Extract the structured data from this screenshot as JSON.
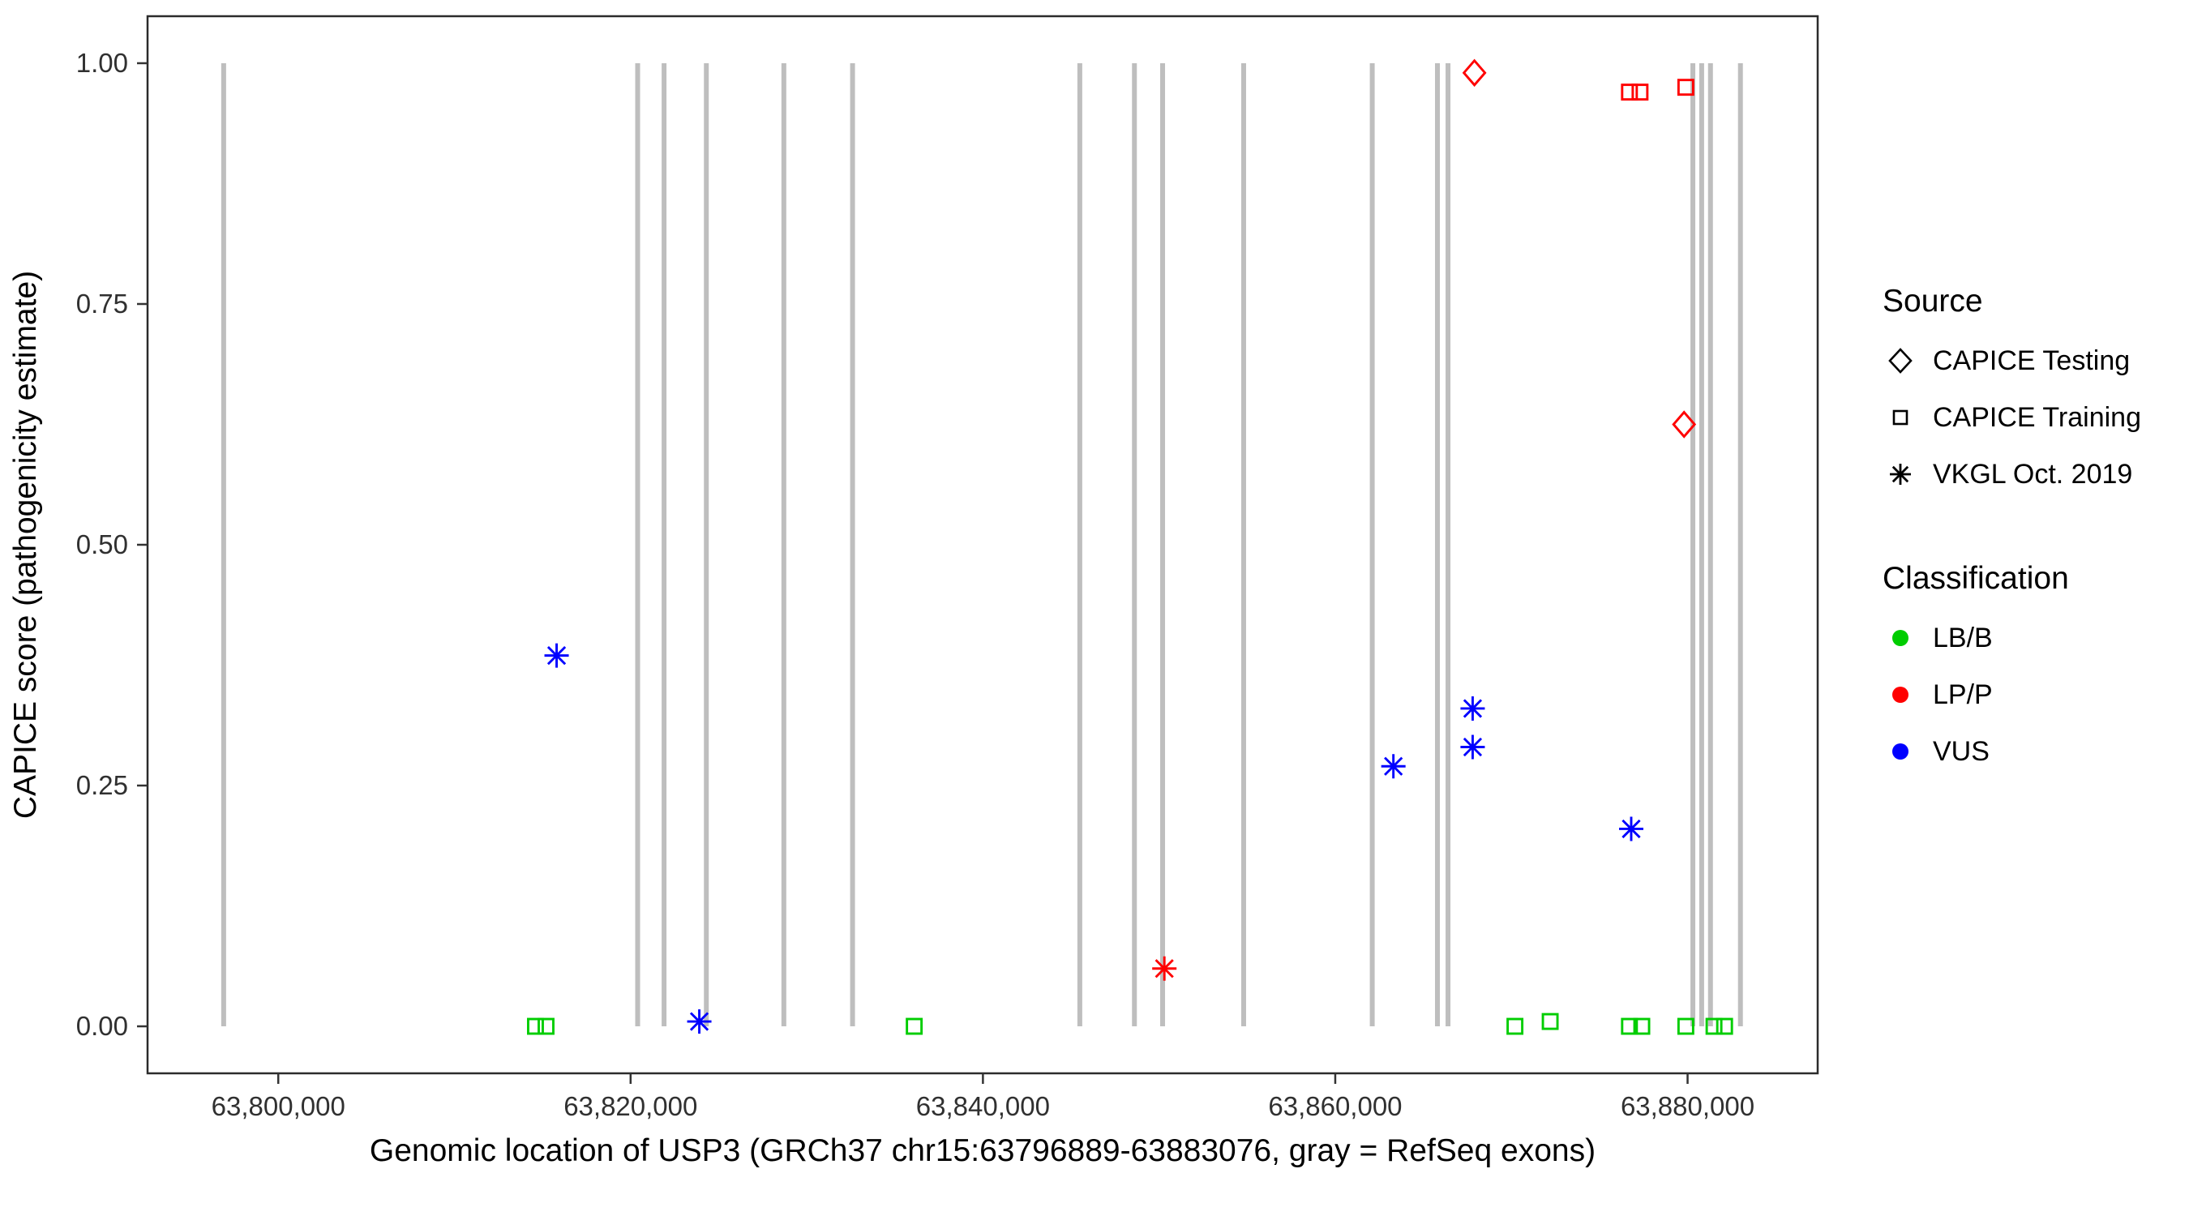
{
  "chart_data": {
    "type": "scatter",
    "title": "",
    "xlabel": "Genomic location of USP3 (GRCh37 chr15:63796889-63883076, gray = RefSeq exons)",
    "ylabel": "CAPICE score (pathogenicity estimate)",
    "x_domain": [
      63792580,
      63887385
    ],
    "y_domain": [
      -0.0488,
      1.0488
    ],
    "grid": "off",
    "x_ticks": [
      {
        "value": 63800000,
        "label": "63,800,000"
      },
      {
        "value": 63820000,
        "label": "63,820,000"
      },
      {
        "value": 63840000,
        "label": "63,840,000"
      },
      {
        "value": 63860000,
        "label": "63,860,000"
      },
      {
        "value": 63880000,
        "label": "63,880,000"
      }
    ],
    "y_ticks": [
      {
        "value": 0,
        "label": "0.00"
      },
      {
        "value": 0.25,
        "label": "0.25"
      },
      {
        "value": 0.5,
        "label": "0.50"
      },
      {
        "value": 0.75,
        "label": "0.75"
      },
      {
        "value": 1,
        "label": "1.00"
      }
    ],
    "exons": {
      "color": "#BEBEBE",
      "y_from": 0,
      "y_to": 1,
      "positions": [
        63796900,
        63820400,
        63821900,
        63824300,
        63828700,
        63832600,
        63845500,
        63848600,
        63850200,
        63854800,
        63862100,
        63865800,
        63866400,
        63880300,
        63880800,
        63881300,
        63883000
      ]
    },
    "colors": {
      "LB/B": "#00CD00",
      "LP/P": "#FF0000",
      "VUS": "#0000FF"
    },
    "shapes": {
      "CAPICE Testing": "diamond-open",
      "CAPICE Training": "square-open",
      "VKGL Oct. 2019": "asterisk"
    },
    "points": [
      {
        "pos": 63867900,
        "score": 0.99,
        "source": "CAPICE Testing",
        "classification": "LP/P"
      },
      {
        "pos": 63879800,
        "score": 0.625,
        "source": "CAPICE Testing",
        "classification": "LP/P"
      },
      {
        "pos": 63876700,
        "score": 0.97,
        "source": "CAPICE Training",
        "classification": "LP/P"
      },
      {
        "pos": 63877300,
        "score": 0.97,
        "source": "CAPICE Training",
        "classification": "LP/P"
      },
      {
        "pos": 63879900,
        "score": 0.975,
        "source": "CAPICE Training",
        "classification": "LP/P"
      },
      {
        "pos": 63814600,
        "score": 0,
        "source": "CAPICE Training",
        "classification": "LB/B"
      },
      {
        "pos": 63815200,
        "score": 0,
        "source": "CAPICE Training",
        "classification": "LB/B"
      },
      {
        "pos": 63836100,
        "score": 0,
        "source": "CAPICE Training",
        "classification": "LB/B"
      },
      {
        "pos": 63870200,
        "score": 0,
        "source": "CAPICE Training",
        "classification": "LB/B"
      },
      {
        "pos": 63872200,
        "score": 0.005,
        "source": "CAPICE Training",
        "classification": "LB/B"
      },
      {
        "pos": 63876700,
        "score": 0,
        "source": "CAPICE Training",
        "classification": "LB/B"
      },
      {
        "pos": 63877400,
        "score": 0,
        "source": "CAPICE Training",
        "classification": "LB/B"
      },
      {
        "pos": 63879900,
        "score": 0,
        "source": "CAPICE Training",
        "classification": "LB/B"
      },
      {
        "pos": 63881500,
        "score": 0,
        "source": "CAPICE Training",
        "classification": "LB/B"
      },
      {
        "pos": 63882100,
        "score": 0,
        "source": "CAPICE Training",
        "classification": "LB/B"
      },
      {
        "pos": 63850300,
        "score": 0.06,
        "source": "VKGL Oct. 2019",
        "classification": "LP/P"
      },
      {
        "pos": 63815800,
        "score": 0.385,
        "source": "VKGL Oct. 2019",
        "classification": "VUS"
      },
      {
        "pos": 63823900,
        "score": 0.005,
        "source": "VKGL Oct. 2019",
        "classification": "VUS"
      },
      {
        "pos": 63863300,
        "score": 0.27,
        "source": "VKGL Oct. 2019",
        "classification": "VUS"
      },
      {
        "pos": 63867800,
        "score": 0.33,
        "source": "VKGL Oct. 2019",
        "classification": "VUS"
      },
      {
        "pos": 63867800,
        "score": 0.29,
        "source": "VKGL Oct. 2019",
        "classification": "VUS"
      },
      {
        "pos": 63876800,
        "score": 0.205,
        "source": "VKGL Oct. 2019",
        "classification": "VUS"
      }
    ],
    "legend": {
      "position": "right",
      "source": {
        "title": "Source",
        "items": [
          {
            "label": "CAPICE Testing",
            "shape": "diamond-open"
          },
          {
            "label": "CAPICE Training",
            "shape": "square-open"
          },
          {
            "label": "VKGL Oct. 2019",
            "shape": "asterisk"
          }
        ]
      },
      "classification": {
        "title": "Classification",
        "items": [
          {
            "label": "LB/B",
            "color": "#00CD00"
          },
          {
            "label": "LP/P",
            "color": "#FF0000"
          },
          {
            "label": "VUS",
            "color": "#0000FF"
          }
        ]
      }
    }
  }
}
